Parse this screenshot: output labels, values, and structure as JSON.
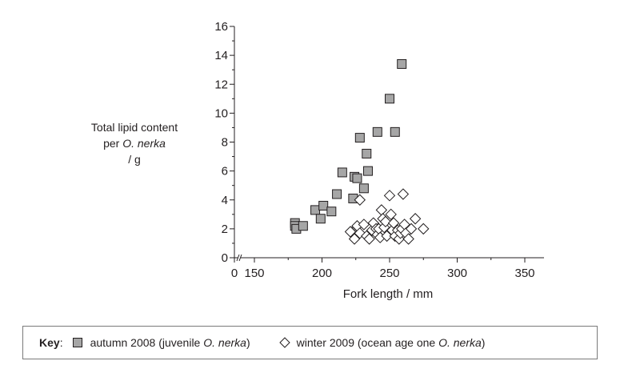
{
  "chart_data": {
    "type": "scatter",
    "ylabel_lines": [
      "Total lipid content",
      "per",
      "O. nerka",
      "/ g"
    ],
    "xlabel": "Fork length / mm",
    "xlim": [
      140,
      365
    ],
    "ylim": [
      0,
      16
    ],
    "x_ticks": [
      "0",
      "150",
      "200",
      "250",
      "300",
      "350"
    ],
    "x_tick_values": [
      null,
      150,
      200,
      250,
      300,
      350
    ],
    "y_ticks": [
      0,
      2,
      4,
      6,
      8,
      10,
      12,
      14,
      16
    ],
    "axis_break": true,
    "grid": false,
    "legend_position": "bottom",
    "series": [
      {
        "name": "autumn 2008 (juvenile O. nerka)",
        "marker": "square",
        "fill": "#a6a6a6",
        "points": [
          [
            180,
            2.4
          ],
          [
            180,
            2.2
          ],
          [
            181,
            2.0
          ],
          [
            186,
            2.2
          ],
          [
            195,
            3.3
          ],
          [
            199,
            2.7
          ],
          [
            201,
            3.6
          ],
          [
            207,
            3.2
          ],
          [
            211,
            4.4
          ],
          [
            215,
            5.9
          ],
          [
            223,
            4.1
          ],
          [
            224,
            1.8
          ],
          [
            224,
            5.6
          ],
          [
            226,
            5.5
          ],
          [
            228,
            8.3
          ],
          [
            231,
            4.8
          ],
          [
            233,
            7.2
          ],
          [
            234,
            6.0
          ],
          [
            241,
            8.7
          ],
          [
            250,
            11.0
          ],
          [
            254,
            8.7
          ],
          [
            259,
            13.4
          ]
        ]
      },
      {
        "name": "winter 2009 (ocean age one O. nerka)",
        "marker": "diamond",
        "fill": "#ffffff",
        "points": [
          [
            221,
            1.8
          ],
          [
            224,
            1.3
          ],
          [
            226,
            2.2
          ],
          [
            228,
            1.7
          ],
          [
            228,
            4.0
          ],
          [
            231,
            2.3
          ],
          [
            233,
            1.5
          ],
          [
            235,
            1.3
          ],
          [
            237,
            1.9
          ],
          [
            238,
            2.4
          ],
          [
            240,
            2.0
          ],
          [
            241,
            1.6
          ],
          [
            242,
            2.0
          ],
          [
            243,
            1.4
          ],
          [
            244,
            3.3
          ],
          [
            245,
            2.7
          ],
          [
            246,
            2.1
          ],
          [
            247,
            2.5
          ],
          [
            248,
            1.5
          ],
          [
            250,
            4.3
          ],
          [
            251,
            3.0
          ],
          [
            252,
            1.9
          ],
          [
            253,
            2.4
          ],
          [
            254,
            1.5
          ],
          [
            256,
            1.9
          ],
          [
            257,
            1.3
          ],
          [
            258,
            1.7
          ],
          [
            259,
            2.0
          ],
          [
            260,
            4.4
          ],
          [
            261,
            2.3
          ],
          [
            262,
            1.7
          ],
          [
            264,
            1.3
          ],
          [
            266,
            2.0
          ],
          [
            269,
            2.7
          ],
          [
            275,
            2.0
          ]
        ]
      }
    ]
  },
  "key": {
    "title": "Key",
    "colon": ":",
    "autumn_pre": "autumn 2008 (juvenile",
    "autumn_species": "O. nerka",
    "autumn_post": ")",
    "winter_pre": "winter 2009 (ocean age one",
    "winter_species": "O. nerka",
    "winter_post": ")"
  },
  "colors": {
    "ink": "#231f20",
    "square_fill": "#a6a6a6",
    "diamond_fill": "#ffffff"
  }
}
